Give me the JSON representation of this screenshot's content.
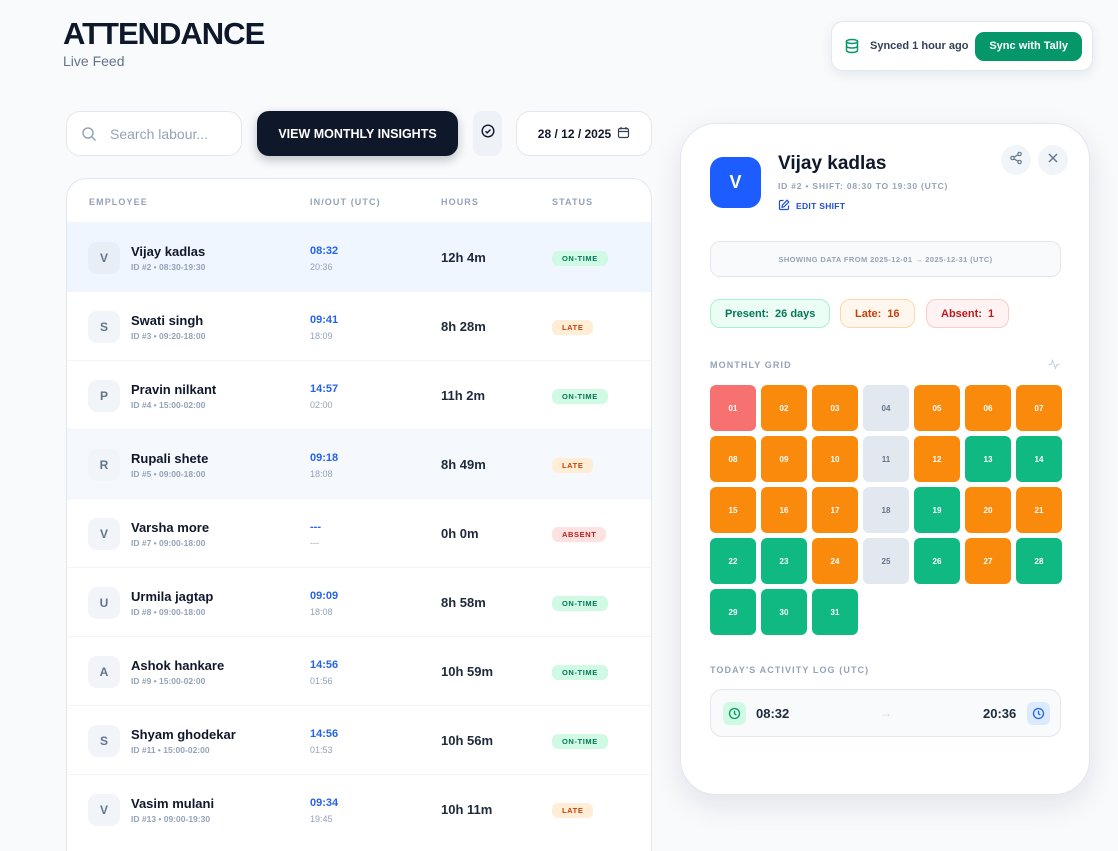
{
  "header": {
    "title": "ATTENDANCE",
    "subtitle": "Live Feed"
  },
  "sync": {
    "status": "Synced 1 hour ago",
    "button_label": "Sync with Tally",
    "icon": "database-icon"
  },
  "toolbar": {
    "search_placeholder": "Search labour...",
    "insights_label": "VIEW MONTHLY INSIGHTS",
    "date": "28 / 12 / 2025"
  },
  "table": {
    "columns": [
      "EMPLOYEE",
      "IN/OUT (UTC)",
      "HOURS",
      "STATUS"
    ],
    "rows": [
      {
        "initial": "V",
        "name": "Vijay kadlas",
        "meta": "ID #2 • 08:30-19:30",
        "in": "08:32",
        "out": "20:36",
        "hours": "12h 4m",
        "status": "ON-TIME"
      },
      {
        "initial": "S",
        "name": "Swati singh",
        "meta": "ID #3 • 09:20-18:00",
        "in": "09:41",
        "out": "18:09",
        "hours": "8h 28m",
        "status": "LATE"
      },
      {
        "initial": "P",
        "name": "Pravin nilkant",
        "meta": "ID #4 • 15:00-02:00",
        "in": "14:57",
        "out": "02:00",
        "hours": "11h 2m",
        "status": "ON-TIME"
      },
      {
        "initial": "R",
        "name": "Rupali shete",
        "meta": "ID #5 • 09:00-18:00",
        "in": "09:18",
        "out": "18:08",
        "hours": "8h 49m",
        "status": "LATE"
      },
      {
        "initial": "V",
        "name": "Varsha more",
        "meta": "ID #7 • 09:00-18:00",
        "in": "---",
        "out": "---",
        "hours": "0h 0m",
        "status": "ABSENT"
      },
      {
        "initial": "U",
        "name": "Urmila jagtap",
        "meta": "ID #8 • 09:00-18:00",
        "in": "09:09",
        "out": "18:08",
        "hours": "8h 58m",
        "status": "ON-TIME"
      },
      {
        "initial": "A",
        "name": "Ashok hankare",
        "meta": "ID #9 • 15:00-02:00",
        "in": "14:56",
        "out": "01:56",
        "hours": "10h 59m",
        "status": "ON-TIME"
      },
      {
        "initial": "S",
        "name": "Shyam ghodekar",
        "meta": "ID #11 • 15:00-02:00",
        "in": "14:56",
        "out": "01:53",
        "hours": "10h 56m",
        "status": "ON-TIME"
      },
      {
        "initial": "V",
        "name": "Vasim mulani",
        "meta": "ID #13 • 09:00-19:30",
        "in": "09:34",
        "out": "19:45",
        "hours": "10h 11m",
        "status": "LATE"
      }
    ]
  },
  "detail": {
    "initial": "V",
    "name": "Vijay kadlas",
    "meta": "ID #2 • SHIFT: 08:30 TO 19:30 (UTC)",
    "edit_label": "EDIT SHIFT",
    "range_text": "SHOWING DATA FROM 2025-12-01 → 2025-12-31 (UTC)",
    "present_label": "Present:",
    "present_value": "26 days",
    "late_label": "Late:",
    "late_value": "16",
    "absent_label": "Absent:",
    "absent_value": "1",
    "grid_label": "MONTHLY GRID",
    "log_label": "TODAY'S ACTIVITY LOG (UTC)",
    "log_in": "08:32",
    "log_out": "20:36",
    "days": [
      {
        "d": "01",
        "s": "absent"
      },
      {
        "d": "02",
        "s": "late"
      },
      {
        "d": "03",
        "s": "late"
      },
      {
        "d": "04",
        "s": "off"
      },
      {
        "d": "05",
        "s": "late"
      },
      {
        "d": "06",
        "s": "late"
      },
      {
        "d": "07",
        "s": "late"
      },
      {
        "d": "08",
        "s": "late"
      },
      {
        "d": "09",
        "s": "late"
      },
      {
        "d": "10",
        "s": "late"
      },
      {
        "d": "11",
        "s": "off"
      },
      {
        "d": "12",
        "s": "late"
      },
      {
        "d": "13",
        "s": "present"
      },
      {
        "d": "14",
        "s": "present"
      },
      {
        "d": "15",
        "s": "late"
      },
      {
        "d": "16",
        "s": "late"
      },
      {
        "d": "17",
        "s": "late"
      },
      {
        "d": "18",
        "s": "off"
      },
      {
        "d": "19",
        "s": "present"
      },
      {
        "d": "20",
        "s": "late"
      },
      {
        "d": "21",
        "s": "late"
      },
      {
        "d": "22",
        "s": "present"
      },
      {
        "d": "23",
        "s": "present"
      },
      {
        "d": "24",
        "s": "late"
      },
      {
        "d": "25",
        "s": "off"
      },
      {
        "d": "26",
        "s": "present"
      },
      {
        "d": "27",
        "s": "late"
      },
      {
        "d": "28",
        "s": "present"
      },
      {
        "d": "29",
        "s": "present"
      },
      {
        "d": "30",
        "s": "present"
      },
      {
        "d": "31",
        "s": "present"
      }
    ]
  },
  "colors": {
    "brand_dark": "#0f172a",
    "sync_green": "#059669",
    "avatar_blue": "#1d5cff",
    "present": "#10b981",
    "late": "#f98a0c",
    "absent": "#f87171",
    "off": "#e2e8f0"
  }
}
